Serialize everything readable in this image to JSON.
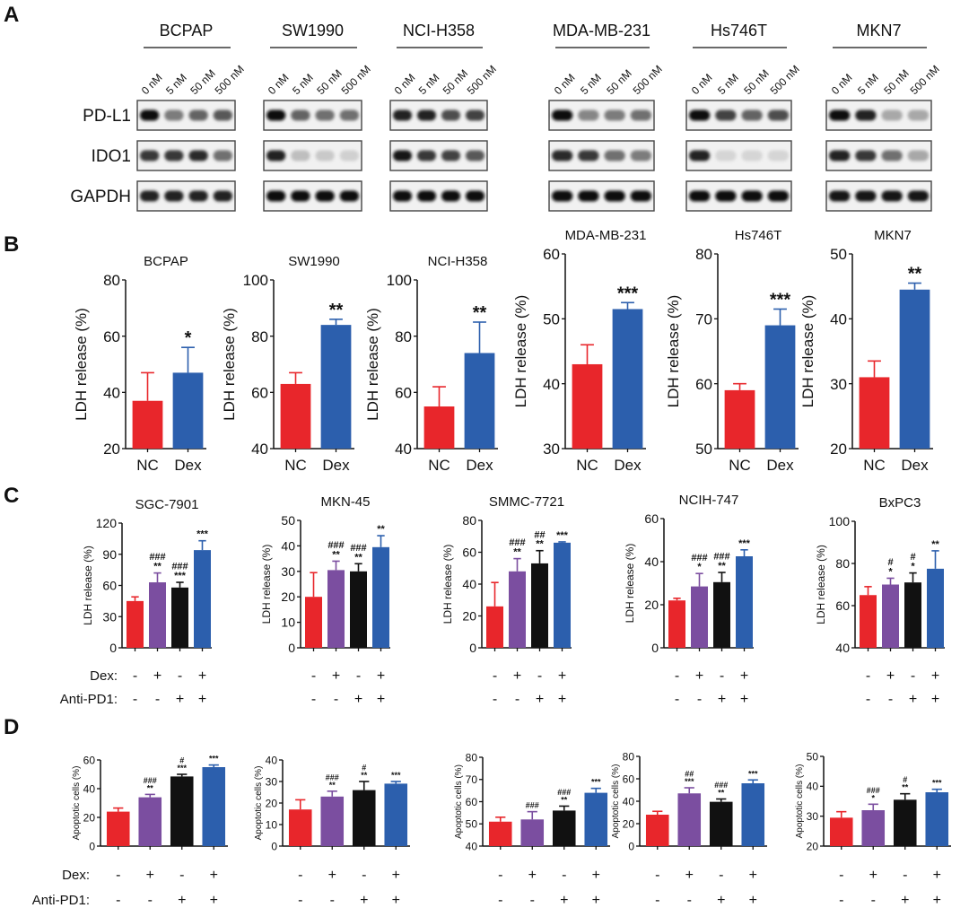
{
  "panels": {
    "A": "A",
    "B": "B",
    "C": "C",
    "D": "D"
  },
  "blot": {
    "cell_lines": [
      "BCPAP",
      "SW1990",
      "NCI-H358",
      "MDA-MB-231",
      "Hs746T",
      "MKN7"
    ],
    "concentrations": [
      "0 nM",
      "5 nM",
      "50 nM",
      "500 nM"
    ],
    "proteins": [
      "PD-L1",
      "IDO1",
      "GAPDH"
    ],
    "band_intensity": {
      "BCPAP": {
        "PD-L1": [
          1.0,
          0.5,
          0.6,
          0.65
        ],
        "IDO1": [
          0.8,
          0.8,
          0.85,
          0.55
        ],
        "GAPDH": [
          0.9,
          0.9,
          0.9,
          0.9
        ]
      },
      "SW1990": {
        "PD-L1": [
          1.0,
          0.6,
          0.55,
          0.55
        ],
        "IDO1": [
          0.9,
          0.2,
          0.15,
          0.12
        ],
        "GAPDH": [
          1,
          1,
          1,
          1
        ]
      },
      "NCI-H358": {
        "PD-L1": [
          0.9,
          0.9,
          0.7,
          0.75
        ],
        "IDO1": [
          0.95,
          0.8,
          0.75,
          0.65
        ],
        "GAPDH": [
          1,
          1,
          1,
          1
        ]
      },
      "MDA-MB-231": {
        "PD-L1": [
          1.0,
          0.45,
          0.5,
          0.55
        ],
        "IDO1": [
          0.85,
          0.8,
          0.55,
          0.5
        ],
        "GAPDH": [
          1,
          1,
          1,
          1
        ]
      },
      "Hs746T": {
        "PD-L1": [
          1.0,
          0.75,
          0.6,
          0.7
        ],
        "IDO1": [
          0.9,
          0.1,
          0.1,
          0.1
        ],
        "GAPDH": [
          1,
          1,
          1,
          1
        ]
      },
      "MKN7": {
        "PD-L1": [
          1.0,
          0.9,
          0.3,
          0.3
        ],
        "IDO1": [
          0.9,
          0.8,
          0.55,
          0.3
        ],
        "GAPDH": [
          0.95,
          0.95,
          0.95,
          0.95
        ]
      }
    }
  },
  "treatment": {
    "dex_label": "Dex:",
    "pd1_label": "Anti-PD1:",
    "dex": [
      "-",
      "+",
      "-",
      "+"
    ],
    "pd1": [
      "-",
      "-",
      "+",
      "+"
    ]
  },
  "colors": {
    "red": "#e8262b",
    "purple": "#7b4ea0",
    "black": "#111111",
    "blue": "#2c5fad"
  },
  "chart_data": [
    {
      "panel": "B",
      "type": "bar",
      "title": "BCPAP",
      "ylabel": "LDH release (%)",
      "ylim": [
        20,
        80
      ],
      "yticks": [
        "20",
        "40",
        "60",
        "80"
      ],
      "categories": [
        "NC",
        "Dex"
      ],
      "values": [
        37,
        47
      ],
      "error_top": [
        47,
        56
      ],
      "significance": [
        [],
        [
          "*"
        ]
      ]
    },
    {
      "panel": "B",
      "type": "bar",
      "title": "SW1990",
      "ylabel": "LDH release (%)",
      "ylim": [
        40,
        100
      ],
      "yticks": [
        "40",
        "60",
        "80",
        "100"
      ],
      "categories": [
        "NC",
        "Dex"
      ],
      "values": [
        63,
        84
      ],
      "error_top": [
        67,
        86
      ],
      "significance": [
        [],
        [
          "**"
        ]
      ]
    },
    {
      "panel": "B",
      "type": "bar",
      "title": "NCI-H358",
      "ylabel": "LDH release (%)",
      "ylim": [
        40,
        100
      ],
      "yticks": [
        "40",
        "60",
        "80",
        "100"
      ],
      "categories": [
        "NC",
        "Dex"
      ],
      "values": [
        55,
        74
      ],
      "error_top": [
        62,
        85
      ],
      "significance": [
        [],
        [
          "**"
        ]
      ]
    },
    {
      "panel": "B",
      "type": "bar",
      "title": "MDA-MB-231",
      "ylabel": "LDH release (%)",
      "ylim": [
        30,
        60
      ],
      "yticks": [
        "30",
        "40",
        "50",
        "60"
      ],
      "categories": [
        "NC",
        "Dex"
      ],
      "values": [
        43,
        51.5
      ],
      "error_top": [
        46,
        52.5
      ],
      "significance": [
        [],
        [
          "***"
        ]
      ]
    },
    {
      "panel": "B",
      "type": "bar",
      "title": "Hs746T",
      "ylabel": "LDH release (%)",
      "ylim": [
        50,
        80
      ],
      "yticks": [
        "50",
        "60",
        "70",
        "80"
      ],
      "categories": [
        "NC",
        "Dex"
      ],
      "values": [
        59,
        69
      ],
      "error_top": [
        60,
        71.5
      ],
      "significance": [
        [],
        [
          "***"
        ]
      ]
    },
    {
      "panel": "B",
      "type": "bar",
      "title": "MKN7",
      "ylabel": "LDH release (%)",
      "ylim": [
        20,
        50
      ],
      "yticks": [
        "20",
        "30",
        "40",
        "50"
      ],
      "categories": [
        "NC",
        "Dex"
      ],
      "values": [
        31,
        44.5
      ],
      "error_top": [
        33.5,
        45.5
      ],
      "significance": [
        [],
        [
          "**"
        ]
      ]
    },
    {
      "panel": "C",
      "type": "bar",
      "title": "SGC-7901",
      "ylabel": "LDH release (%)",
      "ylim": [
        0,
        120
      ],
      "yticks": [
        "0",
        "30",
        "60",
        "90",
        "120"
      ],
      "values": [
        45,
        63,
        58,
        94
      ],
      "error_top": [
        49,
        72,
        63,
        103
      ],
      "significance": [
        [],
        [
          "###",
          "**"
        ],
        [
          "###",
          "***"
        ],
        [
          "***"
        ]
      ]
    },
    {
      "panel": "C",
      "type": "bar",
      "title": "MKN-45",
      "ylabel": "LDH release (%)",
      "ylim": [
        0,
        50
      ],
      "yticks": [
        "0",
        "10",
        "20",
        "30",
        "40",
        "50"
      ],
      "values": [
        20,
        30.5,
        30,
        39.5
      ],
      "error_top": [
        29.5,
        34,
        33,
        44
      ],
      "significance": [
        [],
        [
          "###",
          "**"
        ],
        [
          "###",
          "**"
        ],
        [
          "**"
        ]
      ]
    },
    {
      "panel": "C",
      "type": "bar",
      "title": "SMMC-7721",
      "ylabel": "LDH release (%)",
      "ylim": [
        0,
        80
      ],
      "yticks": [
        "0",
        "20",
        "40",
        "60",
        "80"
      ],
      "values": [
        26,
        48,
        53,
        66
      ],
      "error_top": [
        41,
        56,
        61,
        66.5
      ],
      "significance": [
        [],
        [
          "###",
          "**"
        ],
        [
          "##",
          "**"
        ],
        [
          "***"
        ]
      ]
    },
    {
      "panel": "C",
      "type": "bar",
      "title": "NCIH-747",
      "ylabel": "LDH release (%)",
      "ylim": [
        0,
        60
      ],
      "yticks": [
        "0",
        "20",
        "40",
        "60"
      ],
      "values": [
        22,
        28.5,
        30.5,
        42.5
      ],
      "error_top": [
        23,
        34.5,
        35,
        45.5
      ],
      "significance": [
        [],
        [
          "###",
          "*"
        ],
        [
          "###",
          "**"
        ],
        [
          "***"
        ]
      ]
    },
    {
      "panel": "C",
      "type": "bar",
      "title": "BxPC3",
      "ylabel": "LDH release (%)",
      "ylim": [
        40,
        100
      ],
      "yticks": [
        "40",
        "60",
        "80",
        "100"
      ],
      "values": [
        65,
        70,
        71,
        77.5
      ],
      "error_top": [
        69,
        73,
        75.5,
        86
      ],
      "significance": [
        [],
        [
          "#",
          "*"
        ],
        [
          "#",
          "*"
        ],
        [
          "**"
        ]
      ]
    },
    {
      "panel": "D",
      "type": "bar",
      "ylabel": "Apoptotic cells (%)",
      "ylim": [
        0,
        60
      ],
      "yticks": [
        "0",
        "20",
        "40",
        "60"
      ],
      "values": [
        24,
        34,
        48.5,
        55
      ],
      "error_top": [
        26.5,
        36,
        50,
        56.5
      ],
      "significance": [
        [],
        [
          "###",
          "**"
        ],
        [
          "#",
          "***"
        ],
        [
          "***"
        ]
      ]
    },
    {
      "panel": "D",
      "type": "bar",
      "ylabel": "Apoptotic cells (%)",
      "ylim": [
        0,
        40
      ],
      "yticks": [
        "0",
        "10",
        "20",
        "30",
        "40"
      ],
      "values": [
        17,
        23,
        26,
        29
      ],
      "error_top": [
        21.5,
        25.5,
        30,
        30
      ],
      "significance": [
        [],
        [
          "###",
          "**"
        ],
        [
          "#",
          "**"
        ],
        [
          "***"
        ]
      ]
    },
    {
      "panel": "D",
      "type": "bar",
      "ylabel": "Apoptotic cells (%)",
      "ylim": [
        40,
        80
      ],
      "yticks": [
        "40",
        "50",
        "60",
        "70",
        "80"
      ],
      "values": [
        51,
        52,
        56,
        64
      ],
      "error_top": [
        53,
        55.5,
        58,
        66
      ],
      "significance": [
        [],
        [
          "###"
        ],
        [
          "###",
          "**"
        ],
        [
          "***"
        ]
      ]
    },
    {
      "panel": "D",
      "type": "bar",
      "ylabel": "Apoptotic cells (%)",
      "ylim": [
        0,
        80
      ],
      "yticks": [
        "0",
        "20",
        "40",
        "60",
        "80"
      ],
      "values": [
        28,
        47,
        39.5,
        56
      ],
      "error_top": [
        31,
        52,
        42,
        59
      ],
      "significance": [
        [],
        [
          "##",
          "***"
        ],
        [
          "###",
          "**"
        ],
        [
          "***"
        ]
      ]
    },
    {
      "panel": "D",
      "type": "bar",
      "ylabel": "Apoptotic cells (%)",
      "ylim": [
        20,
        50
      ],
      "yticks": [
        "20",
        "30",
        "40",
        "50"
      ],
      "values": [
        29.5,
        32,
        35.5,
        38
      ],
      "error_top": [
        31.5,
        34,
        37.5,
        39
      ],
      "significance": [
        [],
        [
          "###",
          "*"
        ],
        [
          "#",
          "**"
        ],
        [
          "***"
        ]
      ]
    }
  ]
}
